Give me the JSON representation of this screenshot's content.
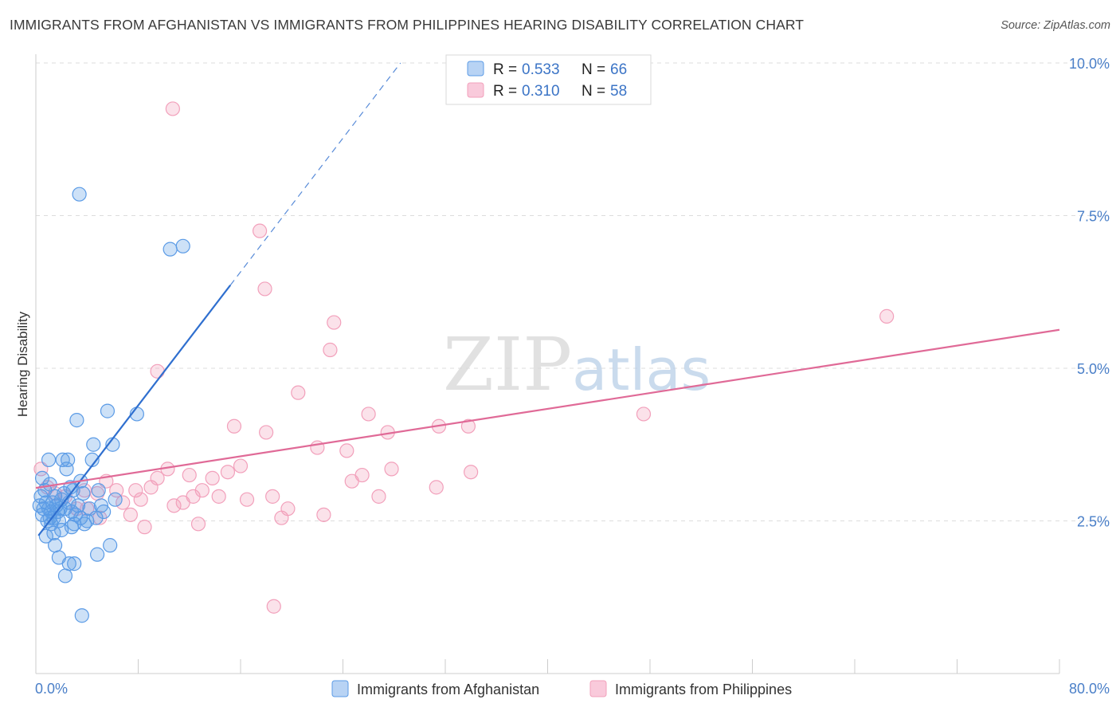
{
  "title": "IMMIGRANTS FROM AFGHANISTAN VS IMMIGRANTS FROM PHILIPPINES HEARING DISABILITY CORRELATION CHART",
  "source": "Source: ZipAtlas.com",
  "watermark": {
    "part1": "ZIP",
    "part2": "atlas"
  },
  "colors": {
    "afghanistan": "#5b9be6",
    "afghanistan_line": "#2f6fcf",
    "philippines": "#f2a0bb",
    "philippines_line": "#e06a97",
    "grid": "#dddddd",
    "tick_label": "#4a7fc8"
  },
  "legend": {
    "rows": [
      {
        "r_label": "R = ",
        "r_value": "0.533",
        "n_label": "N = ",
        "n_value": "66"
      },
      {
        "r_label": "R = ",
        "r_value": "0.310",
        "n_label": "N = ",
        "n_value": "58"
      }
    ]
  },
  "bottom_legend": [
    "Immigrants from Afghanistan",
    "Immigrants from Philippines"
  ],
  "chart_data": {
    "type": "scatter",
    "title": "IMMIGRANTS FROM AFGHANISTAN VS IMMIGRANTS FROM PHILIPPINES HEARING DISABILITY CORRELATION CHART",
    "xlabel": "",
    "ylabel": "Hearing Disability",
    "xlim": [
      0,
      80
    ],
    "ylim": [
      0,
      10.5
    ],
    "x_tick_labels": [
      "0.0%",
      "80.0%"
    ],
    "y_ticks": [
      2.5,
      5.0,
      7.5,
      10.0
    ],
    "y_tick_labels": [
      "2.5%",
      "5.0%",
      "7.5%",
      "10.0%"
    ],
    "grid": true,
    "series": [
      {
        "name": "Immigrants from Afghanistan",
        "R": 0.533,
        "N": 66,
        "trend": {
          "x0": 0.2,
          "y0": 2.26,
          "x1": 15.2,
          "y1": 6.36,
          "dash_to_x": 28.5,
          "dash_to_y": 10.0
        },
        "points": [
          [
            0.3,
            2.75
          ],
          [
            0.4,
            2.9
          ],
          [
            0.5,
            3.2
          ],
          [
            0.5,
            2.6
          ],
          [
            0.6,
            2.7
          ],
          [
            0.7,
            3.0
          ],
          [
            0.8,
            2.8
          ],
          [
            0.9,
            2.5
          ],
          [
            1.0,
            3.5
          ],
          [
            1.0,
            2.7
          ],
          [
            1.1,
            2.55
          ],
          [
            1.2,
            2.45
          ],
          [
            1.2,
            2.65
          ],
          [
            1.3,
            2.8
          ],
          [
            1.4,
            2.55
          ],
          [
            1.5,
            2.9
          ],
          [
            1.6,
            2.75
          ],
          [
            1.7,
            2.65
          ],
          [
            1.8,
            2.5
          ],
          [
            1.9,
            2.7
          ],
          [
            2.0,
            2.85
          ],
          [
            2.1,
            3.5
          ],
          [
            2.2,
            2.95
          ],
          [
            2.3,
            2.7
          ],
          [
            2.4,
            3.35
          ],
          [
            2.5,
            3.5
          ],
          [
            2.6,
            2.8
          ],
          [
            2.7,
            3.05
          ],
          [
            2.8,
            2.65
          ],
          [
            2.9,
            3.0
          ],
          [
            3.0,
            2.45
          ],
          [
            3.1,
            2.6
          ],
          [
            3.3,
            2.75
          ],
          [
            3.5,
            2.55
          ],
          [
            3.2,
            4.15
          ],
          [
            3.5,
            3.15
          ],
          [
            3.7,
            2.95
          ],
          [
            3.8,
            2.45
          ],
          [
            4.0,
            2.5
          ],
          [
            4.2,
            2.7
          ],
          [
            4.4,
            3.5
          ],
          [
            4.5,
            3.75
          ],
          [
            4.7,
            2.55
          ],
          [
            4.9,
            3.0
          ],
          [
            5.1,
            2.75
          ],
          [
            5.3,
            2.65
          ],
          [
            5.6,
            4.3
          ],
          [
            5.8,
            2.1
          ],
          [
            6.0,
            3.75
          ],
          [
            6.2,
            2.85
          ],
          [
            1.5,
            2.1
          ],
          [
            1.8,
            1.9
          ],
          [
            2.3,
            1.6
          ],
          [
            2.6,
            1.8
          ],
          [
            3.0,
            1.8
          ],
          [
            3.6,
            0.95
          ],
          [
            4.8,
            1.95
          ],
          [
            3.4,
            7.85
          ],
          [
            7.9,
            4.25
          ],
          [
            10.5,
            6.95
          ],
          [
            11.5,
            7.0
          ],
          [
            0.8,
            2.25
          ],
          [
            1.4,
            2.3
          ],
          [
            2.0,
            2.35
          ],
          [
            2.8,
            2.4
          ],
          [
            1.1,
            3.1
          ]
        ]
      },
      {
        "name": "Immigrants from Philippines",
        "R": 0.31,
        "N": 58,
        "trend": {
          "x0": 0.0,
          "y0": 3.04,
          "x1": 80.0,
          "y1": 5.63
        },
        "points": [
          [
            0.4,
            3.35
          ],
          [
            0.9,
            3.05
          ],
          [
            1.5,
            2.95
          ],
          [
            2.3,
            2.9
          ],
          [
            3.2,
            2.7
          ],
          [
            4.0,
            2.7
          ],
          [
            4.8,
            2.95
          ],
          [
            5.5,
            3.15
          ],
          [
            6.3,
            3.0
          ],
          [
            6.8,
            2.8
          ],
          [
            7.4,
            2.6
          ],
          [
            7.8,
            3.0
          ],
          [
            8.5,
            2.4
          ],
          [
            9.0,
            3.05
          ],
          [
            9.5,
            3.2
          ],
          [
            10.3,
            3.35
          ],
          [
            10.8,
            2.75
          ],
          [
            11.5,
            2.8
          ],
          [
            12.0,
            3.25
          ],
          [
            12.3,
            2.9
          ],
          [
            13.0,
            3.0
          ],
          [
            13.8,
            3.2
          ],
          [
            14.3,
            2.9
          ],
          [
            15.0,
            3.3
          ],
          [
            15.5,
            4.05
          ],
          [
            16.0,
            3.4
          ],
          [
            16.5,
            2.85
          ],
          [
            18.0,
            3.95
          ],
          [
            18.5,
            2.9
          ],
          [
            19.2,
            2.55
          ],
          [
            19.7,
            2.7
          ],
          [
            20.5,
            4.6
          ],
          [
            22.0,
            3.7
          ],
          [
            22.5,
            2.6
          ],
          [
            23.0,
            5.3
          ],
          [
            23.3,
            5.75
          ],
          [
            24.3,
            3.65
          ],
          [
            24.7,
            3.15
          ],
          [
            25.5,
            3.25
          ],
          [
            26.0,
            4.25
          ],
          [
            26.8,
            2.9
          ],
          [
            27.5,
            3.95
          ],
          [
            27.8,
            3.35
          ],
          [
            31.3,
            3.05
          ],
          [
            31.5,
            4.05
          ],
          [
            33.8,
            4.05
          ],
          [
            34.0,
            3.3
          ],
          [
            47.5,
            4.25
          ],
          [
            66.5,
            5.85
          ],
          [
            8.2,
            2.85
          ],
          [
            9.5,
            4.95
          ],
          [
            10.7,
            9.25
          ],
          [
            17.5,
            7.25
          ],
          [
            17.9,
            6.3
          ],
          [
            18.6,
            1.1
          ],
          [
            12.7,
            2.45
          ],
          [
            3.8,
            3.0
          ],
          [
            5.0,
            2.55
          ]
        ]
      }
    ]
  }
}
